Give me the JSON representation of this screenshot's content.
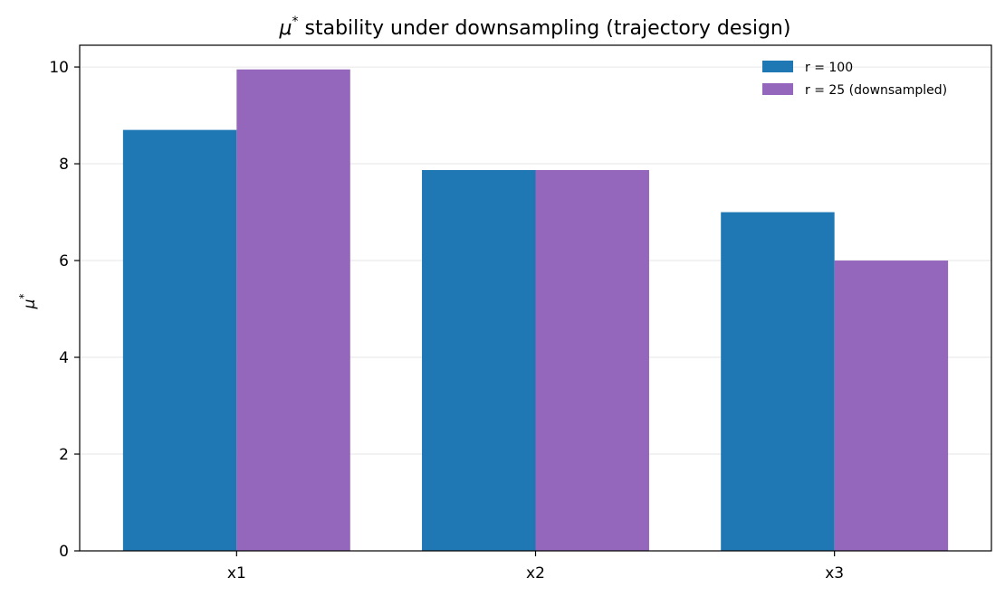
{
  "chart_data": {
    "type": "bar",
    "title_symbol": "μ",
    "title_sup": "*",
    "title_rest": " stability under downsampling (trajectory design)",
    "ylabel_symbol": "μ",
    "ylabel_sup": "*",
    "xlabel": "",
    "categories": [
      "x1",
      "x2",
      "x3"
    ],
    "series": [
      {
        "name": "r = 100",
        "color": "#1f77b4",
        "values": [
          8.7,
          7.87,
          7.0
        ]
      },
      {
        "name": "r = 25 (downsampled)",
        "color": "#9467bd",
        "values": [
          9.95,
          7.87,
          6.0
        ]
      }
    ],
    "ylim": [
      0,
      10.45
    ],
    "yticks": [
      0,
      2,
      4,
      6,
      8,
      10
    ],
    "grid": "y",
    "legend": "top-right"
  }
}
